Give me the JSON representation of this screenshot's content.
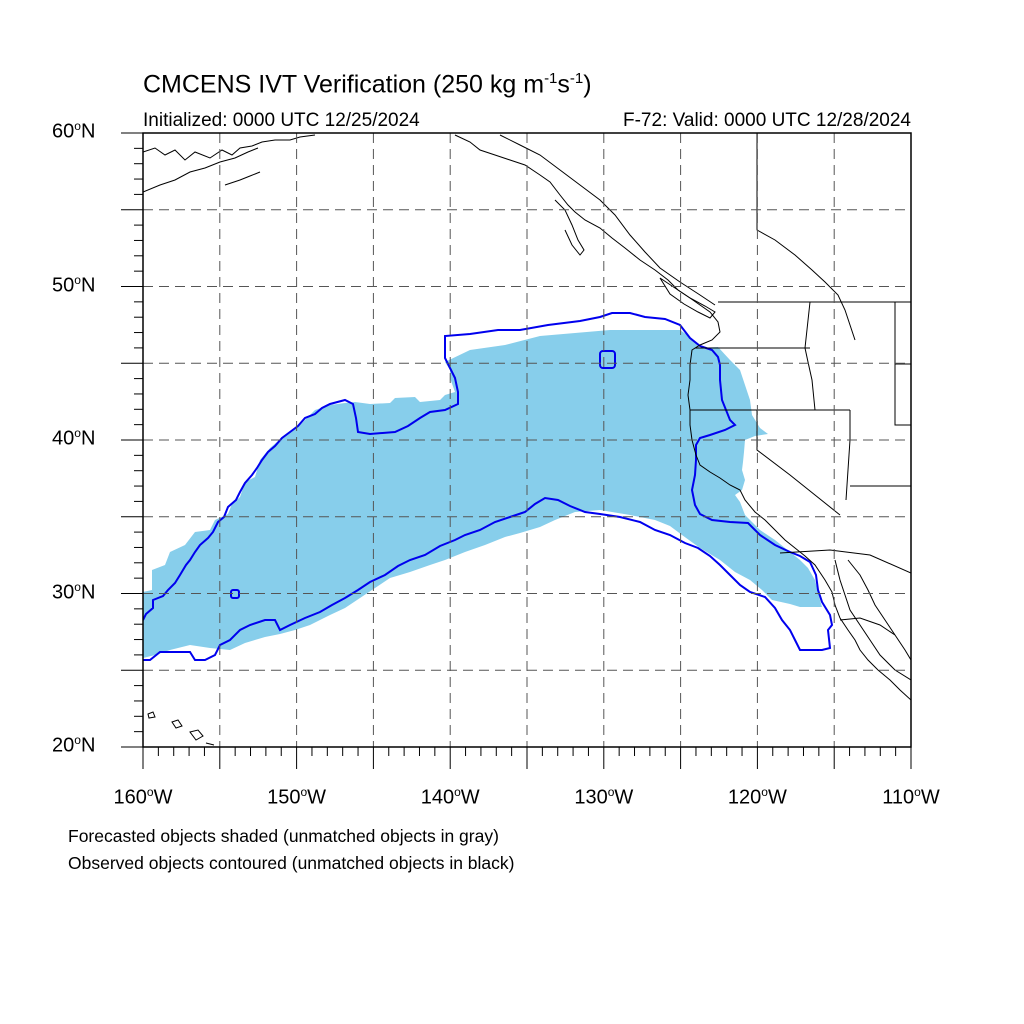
{
  "title": {
    "main": "CMCENS IVT Verification (250 kg m",
    "exp1": "-1",
    "mid": "s",
    "exp2": "-1",
    "end": ")"
  },
  "init_label": "Initialized: 0000 UTC 12/25/2024",
  "valid_label": "F-72: Valid: 0000 UTC 12/28/2024",
  "y_ticks": [
    {
      "deg": "60",
      "hemi": "N",
      "lat": 60
    },
    {
      "deg": "50",
      "hemi": "N",
      "lat": 50
    },
    {
      "deg": "40",
      "hemi": "N",
      "lat": 40
    },
    {
      "deg": "30",
      "hemi": "N",
      "lat": 30
    },
    {
      "deg": "20",
      "hemi": "N",
      "lat": 20
    }
  ],
  "x_ticks": [
    {
      "deg": "160",
      "hemi": "W",
      "lon": -160
    },
    {
      "deg": "150",
      "hemi": "W",
      "lon": -150
    },
    {
      "deg": "140",
      "hemi": "W",
      "lon": -140
    },
    {
      "deg": "130",
      "hemi": "W",
      "lon": -130
    },
    {
      "deg": "120",
      "hemi": "W",
      "lon": -120
    },
    {
      "deg": "110",
      "hemi": "W",
      "lon": -110
    }
  ],
  "notes": {
    "forecast": "Forecasted objects shaded (unmatched objects in gray)",
    "observed": "Observed objects contoured (unmatched objects in black)"
  },
  "colors": {
    "forecast_fill": "#87ceeb",
    "observed_contour": "#0000ee",
    "coastline": "#000000",
    "grid": "#555555"
  }
}
